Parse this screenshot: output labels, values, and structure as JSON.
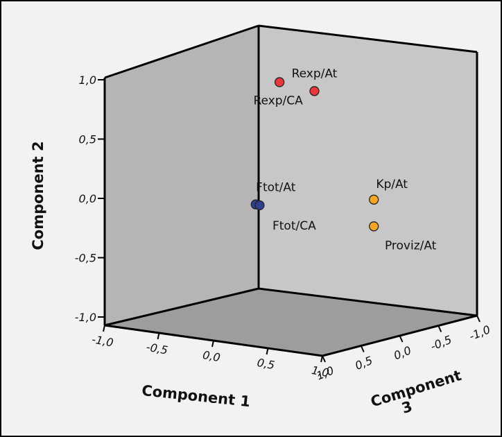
{
  "chart_data": {
    "type": "scatter",
    "title": "",
    "axes": {
      "x": {
        "label": "Component 1",
        "range": [
          -1.0,
          1.0
        ],
        "ticks": [
          "-1,0",
          "-0,5",
          "0,0",
          "0,5",
          "1,0"
        ]
      },
      "y": {
        "label": "Component 2",
        "range": [
          -1.0,
          1.0
        ],
        "ticks": [
          "-1,0",
          "-0,5",
          "0,0",
          "0,5",
          "1,0"
        ]
      },
      "z": {
        "label_lines": [
          "Component",
          "3"
        ],
        "range": [
          -1.0,
          1.0
        ],
        "ticks": [
          "1,0",
          "0,5",
          "0,0",
          "-0,5",
          "-1,0"
        ]
      }
    },
    "points": [
      {
        "label": "Rexp/At",
        "x": 0.35,
        "y": 0.93,
        "z": 0.45,
        "color": "#e8383d"
      },
      {
        "label": "Rexp/CA",
        "x": 0.18,
        "y": 1.0,
        "z": 0.65,
        "color": "#e8383d"
      },
      {
        "label": "Kp/At",
        "x": 0.98,
        "y": 0.12,
        "z": 0.35,
        "color": "#f5a623"
      },
      {
        "label": "Proviz/At",
        "x": 0.98,
        "y": -0.1,
        "z": 0.35,
        "color": "#f5a623"
      },
      {
        "label": "Ftot/At",
        "x": -0.2,
        "y": -0.07,
        "z": 0.6,
        "color": "#2e3f8f"
      },
      {
        "label": "Ftot/CA",
        "x": -0.15,
        "y": -0.07,
        "z": 0.6,
        "color": "#2e3f8f"
      }
    ],
    "grid": false,
    "legend": "none"
  }
}
